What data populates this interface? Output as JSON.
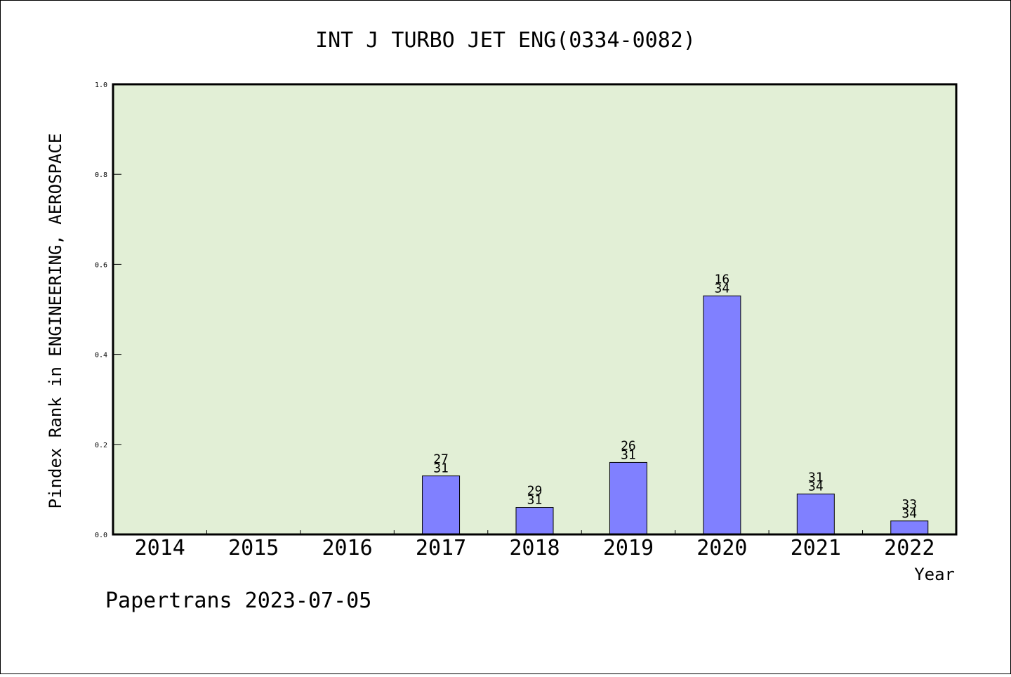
{
  "colors": {
    "plot_background": "#e2efd6",
    "bar_fill": "#8080ff",
    "axis": "#000000"
  },
  "chart_data": {
    "type": "bar",
    "title": "INT J TURBO JET ENG(0334-0082)",
    "xlabel": "Year",
    "ylabel": "Pindex Rank in ENGINEERING, AEROSPACE",
    "ylim": [
      0,
      1.0
    ],
    "yticks": [
      "0.0",
      "0.2",
      "0.4",
      "0.6",
      "0.8",
      "1.0"
    ],
    "grid": false,
    "categories": [
      "2014",
      "2015",
      "2016",
      "2017",
      "2018",
      "2019",
      "2020",
      "2021",
      "2022"
    ],
    "values": [
      null,
      null,
      null,
      0.13,
      0.06,
      0.16,
      0.53,
      0.09,
      0.03
    ],
    "labels": [
      null,
      null,
      null,
      {
        "rank": "27",
        "total": "31"
      },
      {
        "rank": "29",
        "total": "31"
      },
      {
        "rank": "26",
        "total": "31"
      },
      {
        "rank": "16",
        "total": "34"
      },
      {
        "rank": "31",
        "total": "34"
      },
      {
        "rank": "33",
        "total": "34"
      }
    ]
  },
  "footer": "Papertrans 2023-07-05"
}
